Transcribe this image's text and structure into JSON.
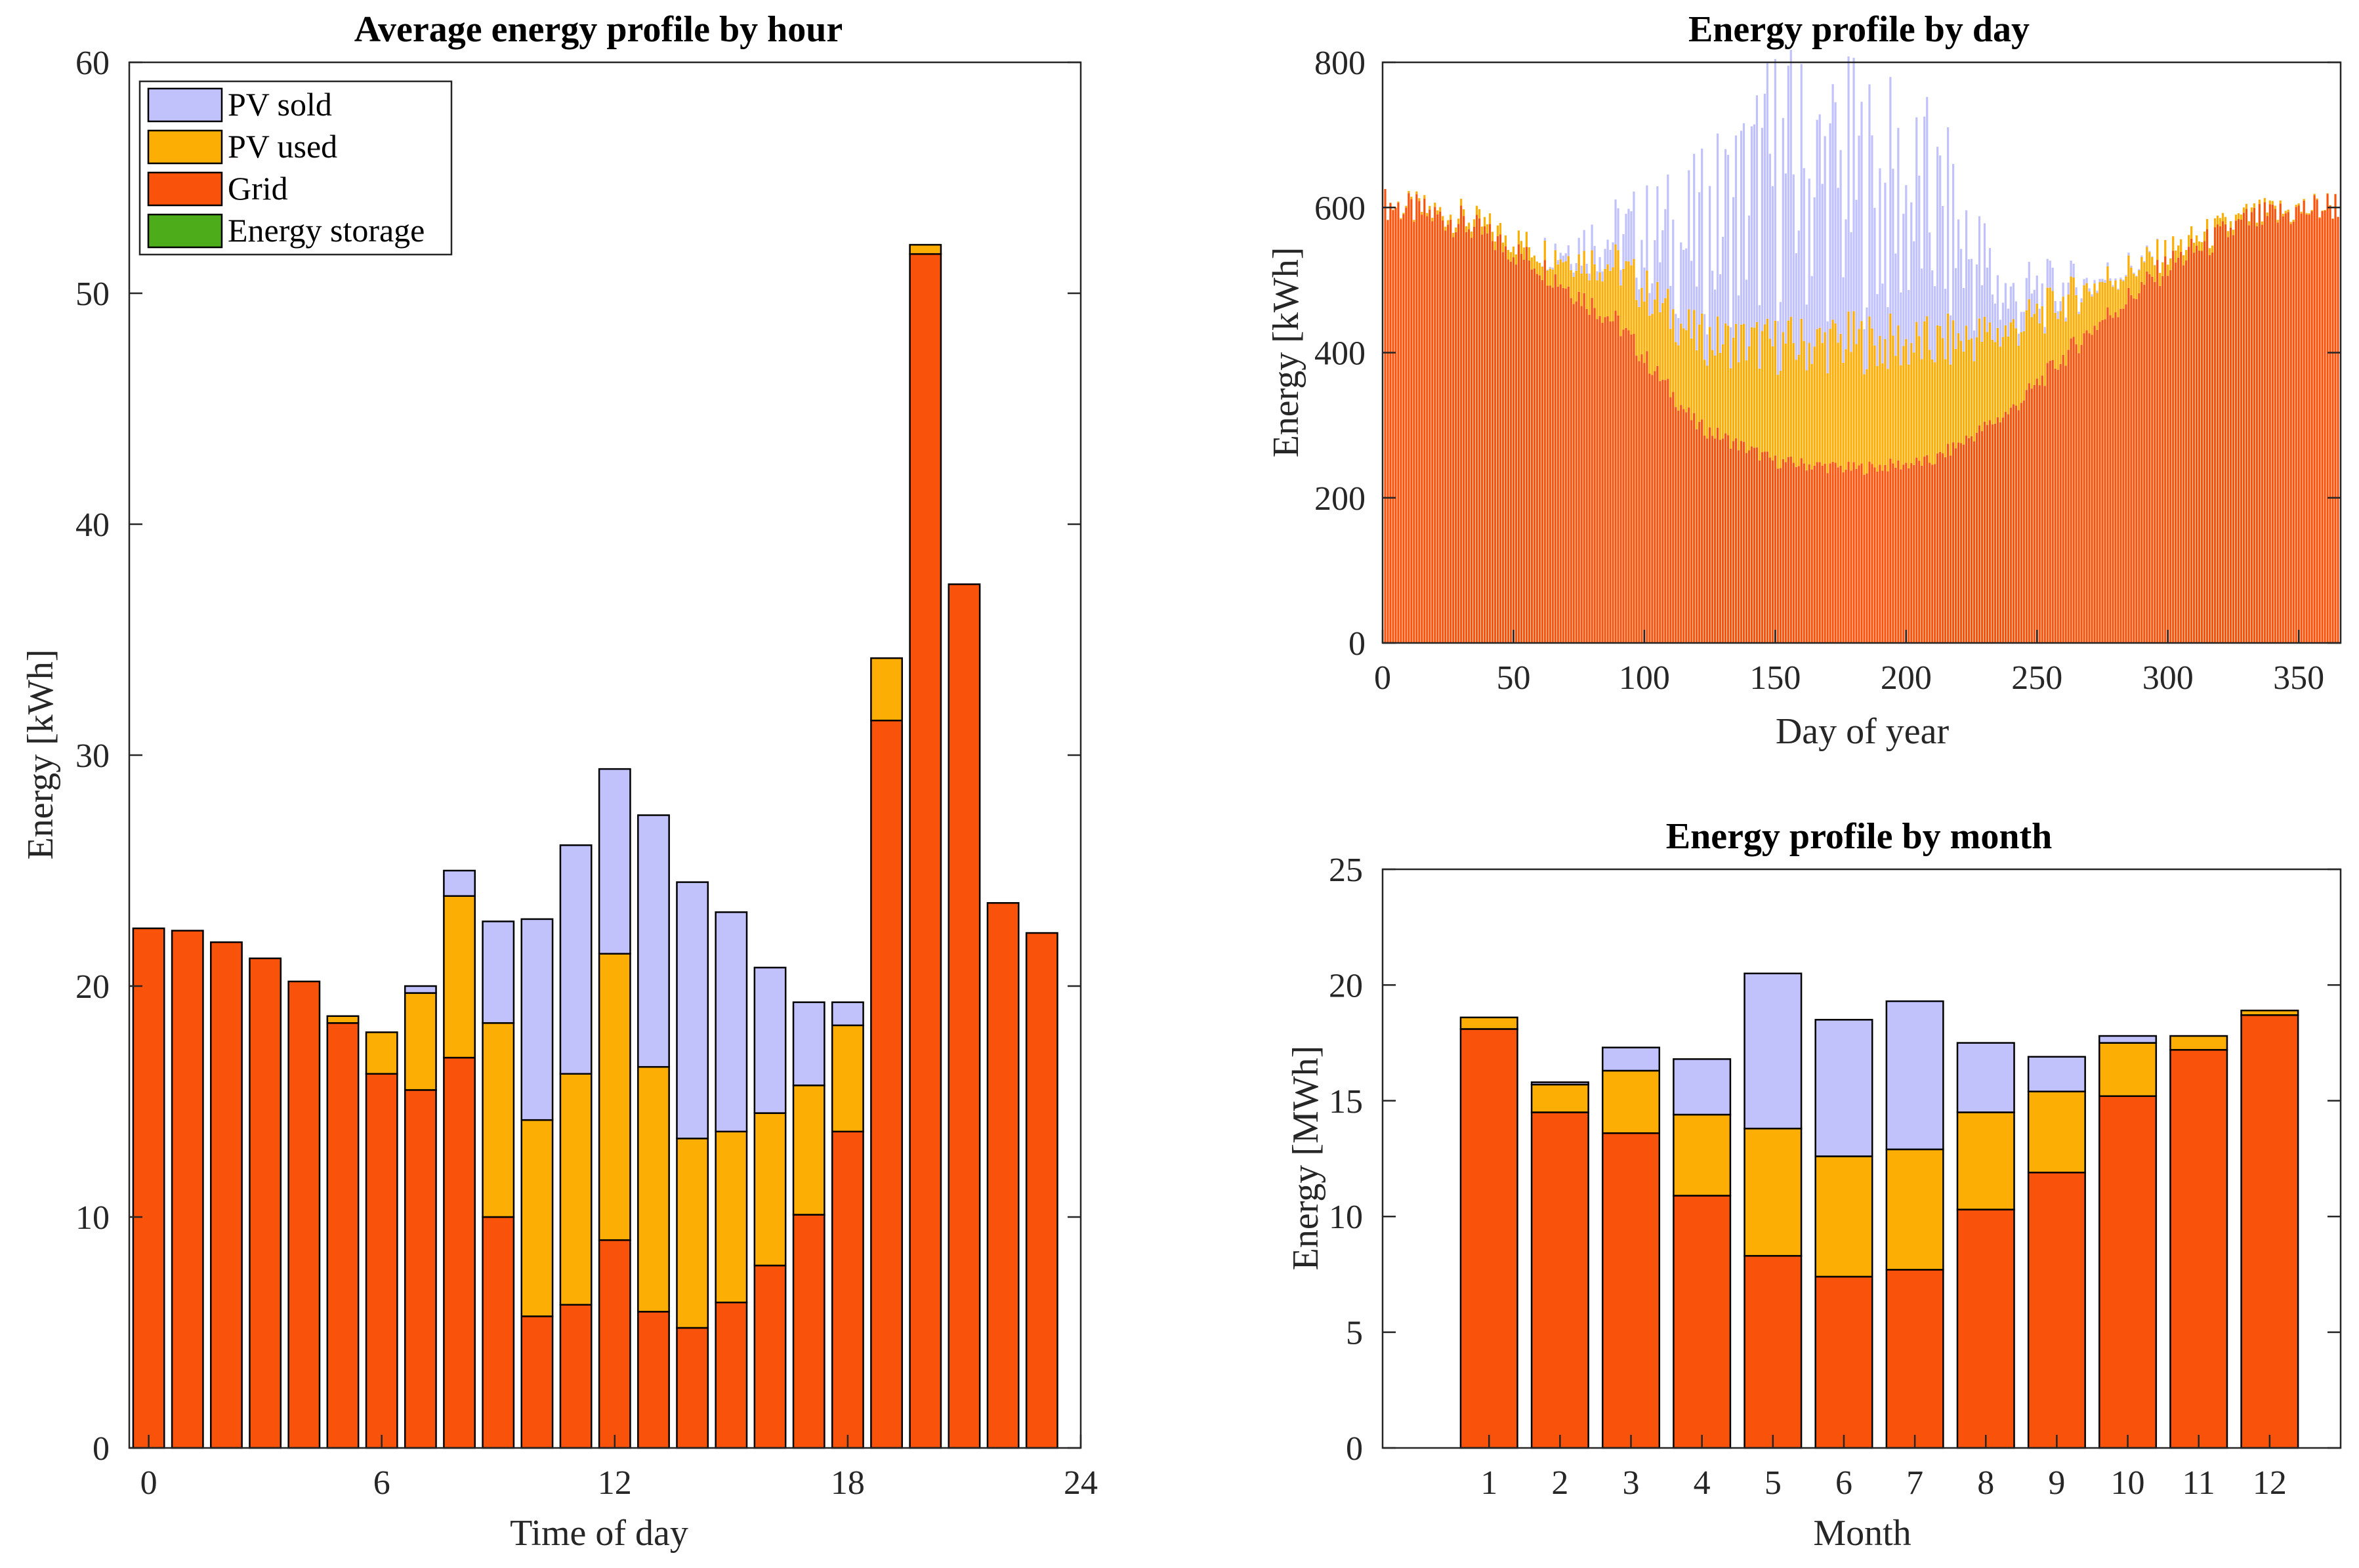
{
  "chart_data": [
    {
      "type": "bar",
      "stacked": true,
      "title": "Average energy profile by hour",
      "xlabel": "Time of day",
      "ylabel": "Energy [kWh]",
      "ylim": [
        0,
        60
      ],
      "xlim": [
        -0.5,
        24
      ],
      "yticks": [
        0,
        10,
        20,
        30,
        40,
        50,
        60
      ],
      "xticks": [
        0,
        6,
        12,
        18,
        24
      ],
      "legend_position": "top-left",
      "legend": [
        "PV sold",
        "PV used",
        "Grid",
        "Energy storage"
      ],
      "x": [
        0,
        1,
        2,
        3,
        4,
        5,
        6,
        7,
        8,
        9,
        10,
        11,
        12,
        13,
        14,
        15,
        16,
        17,
        18,
        19,
        20,
        21,
        22,
        23
      ],
      "series": [
        {
          "name": "Grid",
          "color": "#f9520a",
          "values": [
            22.5,
            22.4,
            21.9,
            21.2,
            20.2,
            18.4,
            16.2,
            15.5,
            16.9,
            10.0,
            5.7,
            6.2,
            9.0,
            5.9,
            5.2,
            6.3,
            7.9,
            10.1,
            13.7,
            31.5,
            51.7,
            37.4,
            23.6,
            22.3
          ]
        },
        {
          "name": "PV used",
          "color": "#fdae04",
          "values": [
            0,
            0,
            0,
            0,
            0,
            0.3,
            1.8,
            4.2,
            7.0,
            8.4,
            8.5,
            10.0,
            12.4,
            10.6,
            8.2,
            7.4,
            6.6,
            5.6,
            4.6,
            2.7,
            0.4,
            0,
            0,
            0
          ]
        },
        {
          "name": "PV sold",
          "color": "#c1c1fb",
          "values": [
            0,
            0,
            0,
            0,
            0,
            0,
            0,
            0.3,
            1.1,
            4.4,
            8.7,
            9.9,
            8.0,
            10.9,
            11.1,
            9.5,
            6.3,
            3.6,
            1.0,
            0,
            0,
            0,
            0,
            0
          ]
        },
        {
          "name": "Energy storage",
          "color": "#4cac1a",
          "values": [
            0,
            0,
            0,
            0,
            0,
            0,
            0,
            0,
            0,
            0,
            0,
            0,
            0,
            0,
            0,
            0,
            0,
            0,
            0,
            0,
            0,
            0,
            0,
            0
          ]
        }
      ]
    },
    {
      "type": "bar",
      "stacked": true,
      "title": "Energy profile by day",
      "xlabel": "Day of year",
      "ylabel": "Energy [kWh]",
      "ylim": [
        0,
        800
      ],
      "xlim": [
        0,
        366
      ],
      "yticks": [
        0,
        200,
        400,
        600,
        800
      ],
      "xticks": [
        0,
        50,
        100,
        150,
        200,
        250,
        300,
        350
      ],
      "days": 365,
      "series_profiles": [
        {
          "name": "Grid",
          "color": "#f9520a",
          "day": [
            1,
            30,
            60,
            90,
            120,
            150,
            180,
            210,
            240,
            270,
            300,
            330,
            365
          ],
          "value": [
            605,
            580,
            520,
            440,
            300,
            250,
            240,
            250,
            320,
            430,
            520,
            580,
            605
          ]
        },
        {
          "name": "PV used",
          "color": "#fdae04",
          "day": [
            1,
            30,
            60,
            90,
            120,
            150,
            180,
            210,
            240,
            270,
            300,
            330,
            365
          ],
          "value": [
            0,
            8,
            20,
            80,
            120,
            160,
            175,
            160,
            110,
            60,
            18,
            6,
            0
          ]
        },
        {
          "name": "PV sold",
          "color": "#c1c1fb",
          "day": [
            1,
            30,
            60,
            90,
            120,
            150,
            180,
            210,
            240,
            270,
            300,
            330,
            365
          ],
          "value": [
            0,
            0,
            0,
            40,
            130,
            230,
            210,
            180,
            40,
            5,
            0,
            0,
            0
          ]
        }
      ]
    },
    {
      "type": "bar",
      "stacked": true,
      "title": "Energy profile by month",
      "xlabel": "Month",
      "ylabel": "Energy [MWh]",
      "ylim": [
        0,
        25
      ],
      "xlim": [
        -0.5,
        13
      ],
      "yticks": [
        0,
        5,
        10,
        15,
        20,
        25
      ],
      "categories": [
        "1",
        "2",
        "3",
        "4",
        "5",
        "6",
        "7",
        "8",
        "9",
        "10",
        "11",
        "12"
      ],
      "series": [
        {
          "name": "Grid",
          "color": "#f9520a",
          "values": [
            18.1,
            14.5,
            13.6,
            10.9,
            8.3,
            7.4,
            7.7,
            10.3,
            11.9,
            15.2,
            17.2,
            18.7
          ]
        },
        {
          "name": "PV used",
          "color": "#fdae04",
          "values": [
            0.5,
            1.2,
            2.7,
            3.5,
            5.5,
            5.2,
            5.2,
            4.2,
            3.5,
            2.3,
            0.6,
            0.2
          ]
        },
        {
          "name": "PV sold",
          "color": "#c1c1fb",
          "values": [
            0,
            0.1,
            1.0,
            2.4,
            6.7,
            5.9,
            6.4,
            3.0,
            1.5,
            0.3,
            0,
            0
          ]
        }
      ]
    }
  ]
}
